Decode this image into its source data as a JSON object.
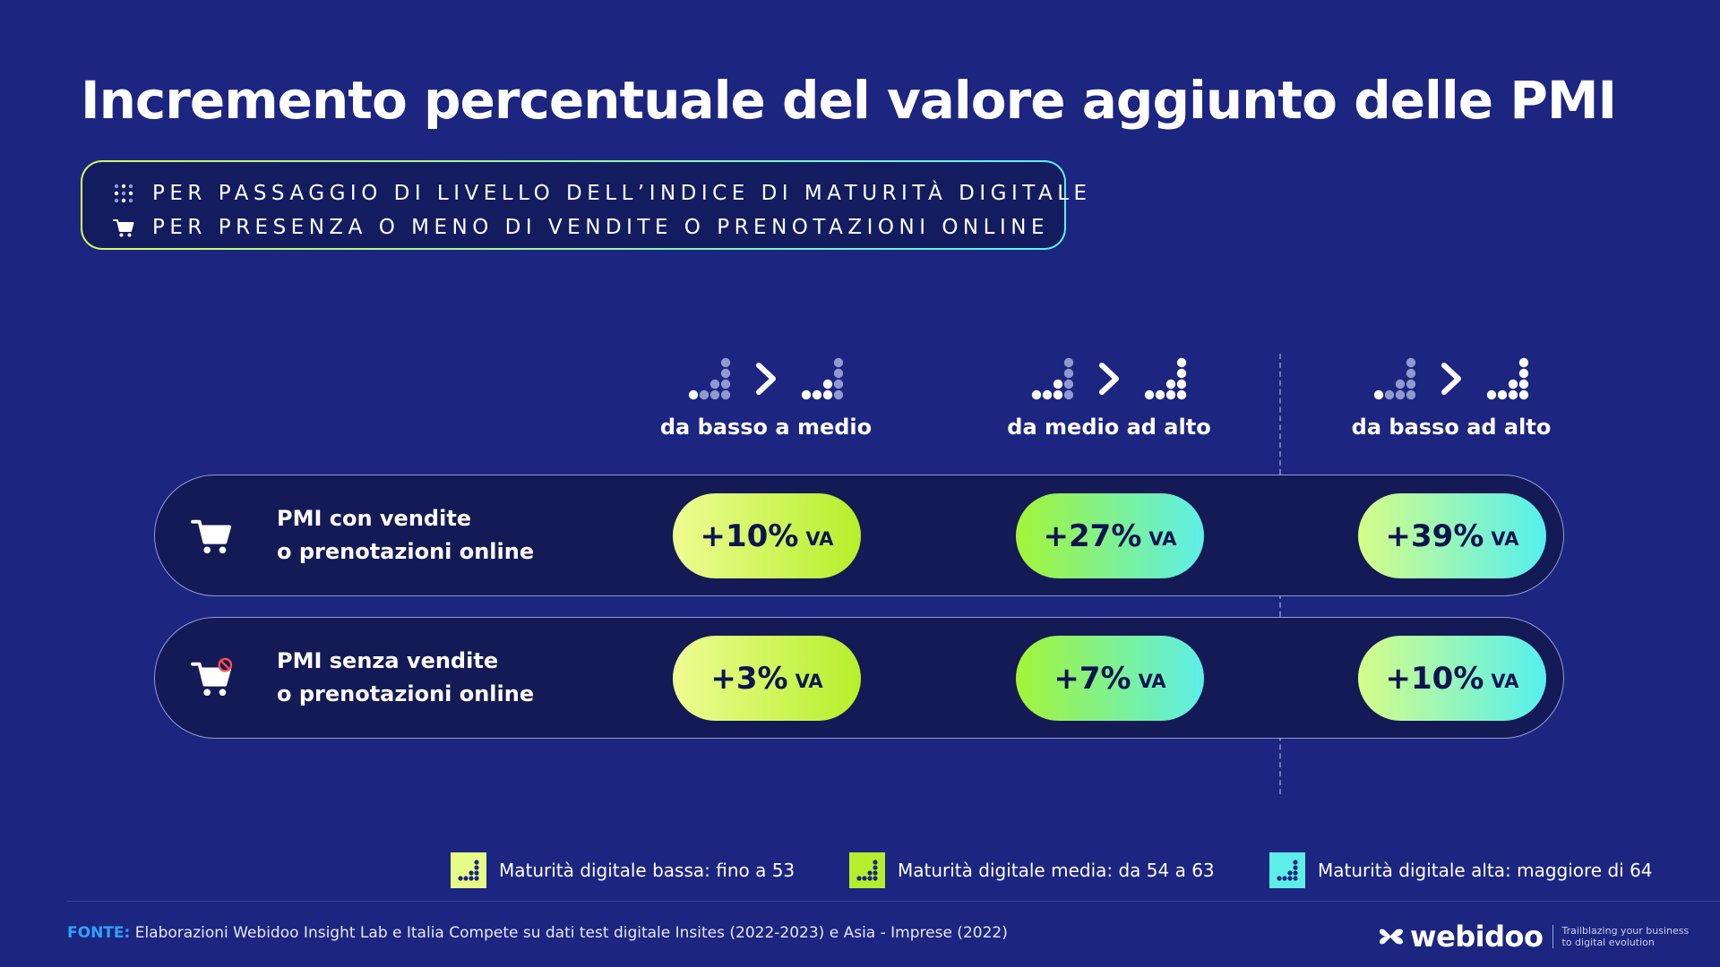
{
  "title": "Incremento percentuale del valore aggiunto delle PMI",
  "subtitle": {
    "line1": "PER PASSAGGIO DI LIVELLO DELL’INDICE DI MATURITÀ DIGITALE",
    "line2": "PER PRESENZA O MENO DI VENDITE O PRENOTAZIONI ONLINE"
  },
  "chart_data": {
    "type": "table",
    "columns": [
      "da basso a medio",
      "da medio ad alto",
      "da basso ad alto"
    ],
    "rows": [
      {
        "label_line1": "PMI con vendite",
        "label_line2": "o prenotazioni online",
        "values": [
          10,
          27,
          39
        ]
      },
      {
        "label_line1": "PMI senza vendite",
        "label_line2": "o prenotazioni online",
        "values": [
          3,
          7,
          10
        ]
      }
    ],
    "cells": [
      [
        {
          "value": "+10%",
          "unit": "VA"
        },
        {
          "value": "+27%",
          "unit": "VA"
        },
        {
          "value": "+39%",
          "unit": "VA"
        }
      ],
      [
        {
          "value": "+3%",
          "unit": "VA"
        },
        {
          "value": "+7%",
          "unit": "VA"
        },
        {
          "value": "+10%",
          "unit": "VA"
        }
      ]
    ],
    "legend": [
      "Maturità digitale bassa: fino a 53",
      "Maturità digitale media: da 54 a 63",
      "Maturità digitale alta: maggiore di 64"
    ]
  },
  "colors": {
    "background": "#1c2580",
    "low": "#e7fc86",
    "medium": "#b3ef2d",
    "high": "#5defe7",
    "source_label": "#2ea2ff"
  },
  "footer": {
    "source_label": "FONTE:",
    "source_text": "Elaborazioni Webidoo Insight Lab e Italia Compete su dati test digitale Insites (2022-2023) e Asia - Imprese (2022)",
    "logo_text": "webidoo",
    "tagline_line1": "Trailblazing your business",
    "tagline_line2": "to digital evolution"
  }
}
